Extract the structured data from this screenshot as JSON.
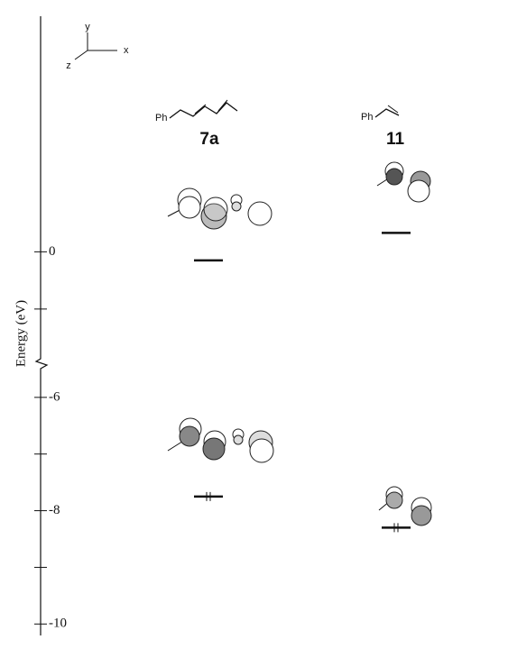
{
  "chart_data": {
    "type": "energy_levels",
    "y_label": "Energy (eV)",
    "axes_labels": {
      "x": "x",
      "y": "y",
      "z": "z"
    },
    "compounds": [
      {
        "label": "7a",
        "substituent": "Ph",
        "lumo": -0.15,
        "homo": -7.75
      },
      {
        "label": "11",
        "substituent": "Ph",
        "lumo": 0.33,
        "homo": -8.3
      }
    ],
    "upper": {
      "ylim": [
        -1.9,
        4.4
      ],
      "yticks": [
        0
      ],
      "minor_yticks": [
        -1
      ]
    },
    "lower": {
      "ylim": [
        -10.6,
        -5.35
      ],
      "yticks": [
        -6,
        -8,
        -10
      ],
      "minor_yticks": [
        -7,
        -9
      ]
    }
  }
}
